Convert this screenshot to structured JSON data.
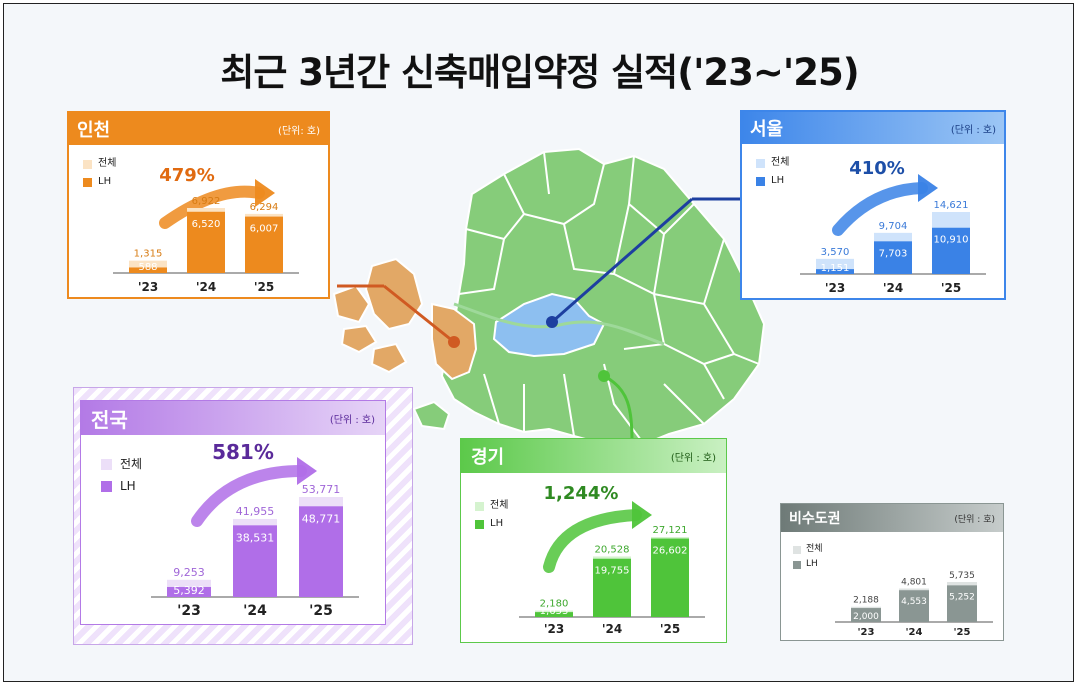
{
  "title": "최근 3년간 신축매입약정 실적('23~'25)",
  "legend_labels": {
    "total": "전체",
    "lh": "LH"
  },
  "unit_label": "(단위 : 호)",
  "chart_data": [
    {
      "type": "bar",
      "region": "인천",
      "unit": "(단위: 호)",
      "growth": "479%",
      "accent": "#ed8a1e",
      "header_color": "#ed8a1e",
      "total_color": "#fbe3c4",
      "lh_color": "#ed8a1e",
      "label_color": "#d77b12",
      "growth_color": "#e06a10",
      "categories": [
        "'23",
        "'24",
        "'25"
      ],
      "total": [
        1315,
        6922,
        6294
      ],
      "lh": [
        588,
        6520,
        6007
      ],
      "total_labels": [
        "1,315",
        "6,922",
        "6,294"
      ],
      "lh_labels": [
        "588",
        "6,520",
        "6,007"
      ]
    },
    {
      "type": "bar",
      "region": "서울",
      "unit": "(단위 : 호)",
      "growth": "410%",
      "accent": "#3a82e6",
      "header_color": "#3d86ea",
      "total_color": "#cfe3fb",
      "lh_color": "#3a82e6",
      "label_color": "#3a7ad8",
      "growth_color": "#1d4fa8",
      "categories": [
        "'23",
        "'24",
        "'25"
      ],
      "total": [
        3570,
        9704,
        14621
      ],
      "lh": [
        1151,
        7703,
        10910
      ],
      "total_labels": [
        "3,570",
        "9,704",
        "14,621"
      ],
      "lh_labels": [
        "1,151",
        "7,703",
        "10,910"
      ]
    },
    {
      "type": "bar",
      "region": "전국",
      "unit": "(단위 : 호)",
      "growth": "581%",
      "accent": "#b06ee8",
      "header_color": "#b37ae6",
      "total_color": "#ecdff8",
      "lh_color": "#b06ee8",
      "label_color": "#a066d8",
      "growth_color": "#5a2a9a",
      "categories": [
        "'23",
        "'24",
        "'25"
      ],
      "total": [
        9253,
        41955,
        53771
      ],
      "lh": [
        5392,
        38531,
        48771
      ],
      "total_labels": [
        "9,253",
        "41,955",
        "53,771"
      ],
      "lh_labels": [
        "5,392",
        "38,531",
        "48,771"
      ]
    },
    {
      "type": "bar",
      "region": "경기",
      "unit": "(단위 : 호)",
      "growth": "1,244%",
      "accent": "#4fc43a",
      "header_color": "#5cc94a",
      "total_color": "#d5f3cf",
      "lh_color": "#4fc43a",
      "label_color": "#3ea82e",
      "growth_color": "#2f8a22",
      "categories": [
        "'23",
        "'24",
        "'25"
      ],
      "total": [
        2180,
        20528,
        27121
      ],
      "lh": [
        1653,
        19755,
        26602
      ],
      "total_labels": [
        "2,180",
        "20,528",
        "27,121"
      ],
      "lh_labels": [
        "1,653",
        "19,755",
        "26,602"
      ]
    },
    {
      "type": "bar",
      "region": "비수도권",
      "unit": "(단위 : 호)",
      "growth": "",
      "accent": "#7b8784",
      "header_color": "#7e8a87",
      "total_color": "#dfe3e2",
      "lh_color": "#8a9693",
      "label_color": "#444",
      "growth_color": "#444",
      "categories": [
        "'23",
        "'24",
        "'25"
      ],
      "total": [
        2188,
        4801,
        5735
      ],
      "lh": [
        2000,
        4553,
        5252
      ],
      "total_labels": [
        "2,188",
        "4,801",
        "5,735"
      ],
      "lh_labels": [
        "2,000",
        "4,553",
        "5,252"
      ]
    }
  ]
}
